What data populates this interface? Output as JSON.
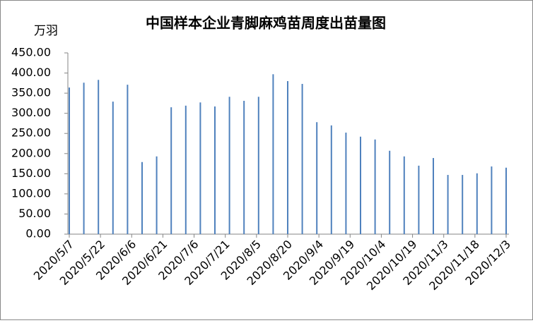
{
  "chart_data": {
    "type": "bar",
    "title": "中国样本企业青脚麻鸡苗周度出苗量图",
    "y_unit": "万羽",
    "x": [
      "2020/5/7",
      "2020/5/14",
      "2020/5/21",
      "2020/5/28",
      "2020/6/4",
      "2020/6/11",
      "2020/6/18",
      "2020/6/25",
      "2020/7/2",
      "2020/7/9",
      "2020/7/16",
      "2020/7/23",
      "2020/7/30",
      "2020/8/6",
      "2020/8/13",
      "2020/8/20",
      "2020/8/27",
      "2020/9/3",
      "2020/9/10",
      "2020/9/17",
      "2020/9/24",
      "2020/10/1",
      "2020/10/8",
      "2020/10/15",
      "2020/10/22",
      "2020/10/29",
      "2020/11/5",
      "2020/11/12",
      "2020/11/19",
      "2020/11/26",
      "2020/12/3"
    ],
    "values": [
      364,
      376,
      383,
      329,
      371,
      179,
      193,
      315,
      319,
      327,
      317,
      341,
      331,
      341,
      397,
      380,
      373,
      278,
      270,
      252,
      242,
      235,
      207,
      193,
      170,
      189,
      147,
      147,
      151,
      168,
      165
    ],
    "color": "#4f81bd",
    "xlim": [
      "2020/5/7",
      "2020/12/3"
    ],
    "xticks": [
      "2020/5/7",
      "2020/5/22",
      "2020/6/6",
      "2020/6/21",
      "2020/7/6",
      "2020/7/21",
      "2020/8/5",
      "2020/8/20",
      "2020/9/4",
      "2020/9/19",
      "2020/10/4",
      "2020/10/19",
      "2020/11/3",
      "2020/11/18",
      "2020/12/3"
    ],
    "ylim": [
      0,
      450
    ],
    "yticks": [
      {
        "value": 0,
        "label": "0.00"
      },
      {
        "value": 50,
        "label": "50.00"
      },
      {
        "value": 100,
        "label": "100.00"
      },
      {
        "value": 150,
        "label": "150.00"
      },
      {
        "value": 200,
        "label": "200.00"
      },
      {
        "value": 250,
        "label": "250.00"
      },
      {
        "value": 300,
        "label": "300.00"
      },
      {
        "value": 350,
        "label": "350.00"
      },
      {
        "value": 400,
        "label": "400.00"
      },
      {
        "value": 450,
        "label": "450.00"
      }
    ],
    "grid": false
  }
}
